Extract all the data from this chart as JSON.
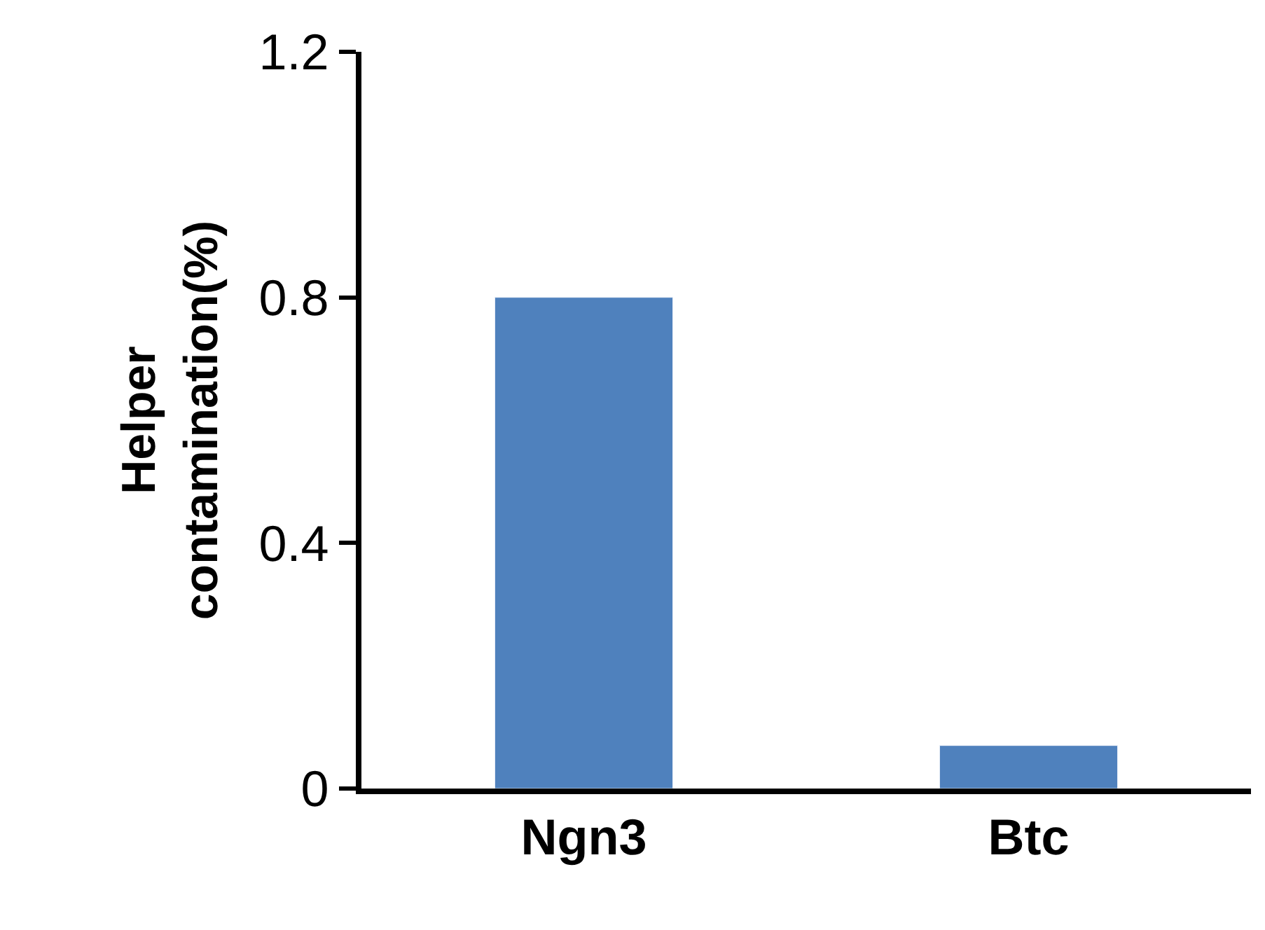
{
  "chart_data": {
    "type": "bar",
    "ylabel": "Helper\ncontamination(%)",
    "categories": [
      "Ngn3",
      "Btc"
    ],
    "series": [
      {
        "color": "#4f81bd",
        "values": [
          0.8,
          0.07
        ]
      }
    ],
    "ylim": [
      0,
      1.2
    ],
    "yticks": [
      0,
      0.4,
      0.8,
      1.2
    ]
  }
}
